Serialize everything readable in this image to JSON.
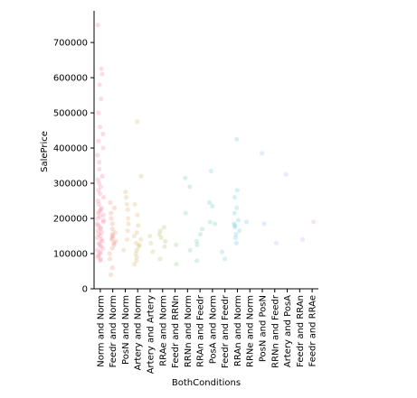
{
  "chart_data": {
    "type": "scatter",
    "xlabel": "BothConditions",
    "ylabel": "SalePrice",
    "ylim": [
      0,
      790000
    ],
    "yticks": [
      0,
      100000,
      200000,
      300000,
      400000,
      500000,
      600000,
      700000
    ],
    "ytick_labels": [
      "0",
      "100000",
      "200000",
      "300000",
      "400000",
      "500000",
      "600000",
      "700000"
    ],
    "grid": false,
    "legend": "none",
    "categories": [
      "Norm and Norm",
      "Feedr and Norm",
      "PosN and Norm",
      "Artery and Norm",
      "Artery and Artery",
      "RRAe and Norm",
      "Feedr and RRNn",
      "RRNn and Norm",
      "RRAn and Feedr",
      "PosA and Norm",
      "Feedr and Feedr",
      "RRAn and Norm",
      "RRNe and Norm",
      "PosN and PosN",
      "RRNn and Feedr",
      "Artery and PosA",
      "Feedr and RRAn",
      "Feedr and RRAe"
    ],
    "colors": [
      "#f7668a",
      "#e8785e",
      "#d79b4a",
      "#c9a43b",
      "#b3ae3e",
      "#9cb54a",
      "#80bb5e",
      "#5fbf8a",
      "#4cbfa6",
      "#45bdb8",
      "#46bcc8",
      "#4bb9d6",
      "#58b2e0",
      "#7aa8ea",
      "#9a9fee",
      "#b495ed",
      "#cd8be6",
      "#e07fd6"
    ],
    "series": [
      {
        "category": "Norm and Norm",
        "points": [
          80000,
          85000,
          90000,
          95000,
          100000,
          105000,
          110000,
          115000,
          120000,
          125000,
          130000,
          135000,
          140000,
          145000,
          150000,
          155000,
          160000,
          165000,
          170000,
          175000,
          180000,
          185000,
          190000,
          195000,
          200000,
          205000,
          210000,
          215000,
          220000,
          225000,
          230000,
          240000,
          250000,
          260000,
          270000,
          280000,
          290000,
          300000,
          310000,
          320000,
          340000,
          360000,
          380000,
          400000,
          420000,
          440000,
          460000,
          500000,
          540000,
          580000,
          610000,
          625000,
          750000
        ]
      },
      {
        "category": "Feedr and Norm",
        "points": [
          40000,
          60000,
          85000,
          100000,
          115000,
          125000,
          130000,
          135000,
          140000,
          145000,
          150000,
          155000,
          160000,
          170000,
          185000,
          200000,
          215000,
          230000,
          245000
        ]
      },
      {
        "category": "PosN and Norm",
        "points": [
          110000,
          140000,
          165000,
          185000,
          200000,
          225000,
          240000,
          260000,
          275000
        ]
      },
      {
        "category": "Artery and Norm",
        "points": [
          70000,
          80000,
          90000,
          100000,
          110000,
          120000,
          125000,
          130000,
          140000,
          150000,
          160000,
          180000,
          210000,
          240000,
          320000,
          475000
        ]
      },
      {
        "category": "Artery and Artery",
        "points": [
          105000,
          130000,
          150000
        ]
      },
      {
        "category": "RRAe and Norm",
        "points": [
          85000,
          120000,
          135000,
          145000,
          155000,
          165000,
          175000
        ]
      },
      {
        "category": "Feedr and RRNn",
        "points": [
          70000,
          125000
        ]
      },
      {
        "category": "RRNn and Norm",
        "points": [
          110000,
          215000,
          290000,
          315000
        ]
      },
      {
        "category": "RRAn and Feedr",
        "points": [
          80000,
          125000,
          135000,
          155000,
          170000
        ]
      },
      {
        "category": "PosA and Norm",
        "points": [
          185000,
          190000,
          235000,
          245000,
          335000
        ]
      },
      {
        "category": "Feedr and Feedr",
        "points": [
          85000,
          105000
        ]
      },
      {
        "category": "RRAn and Norm",
        "points": [
          130000,
          145000,
          155000,
          165000,
          175000,
          180000,
          185000,
          195000,
          215000,
          230000,
          260000,
          280000,
          425000
        ]
      },
      {
        "category": "RRNe and Norm",
        "points": [
          190000
        ]
      },
      {
        "category": "PosN and PosN",
        "points": [
          185000,
          385000
        ]
      },
      {
        "category": "RRNn and Feedr",
        "points": [
          130000
        ]
      },
      {
        "category": "Artery and PosA",
        "points": [
          325000
        ]
      },
      {
        "category": "Feedr and RRAn",
        "points": [
          140000
        ]
      },
      {
        "category": "Feedr and RRAe",
        "points": [
          190000
        ]
      }
    ]
  }
}
